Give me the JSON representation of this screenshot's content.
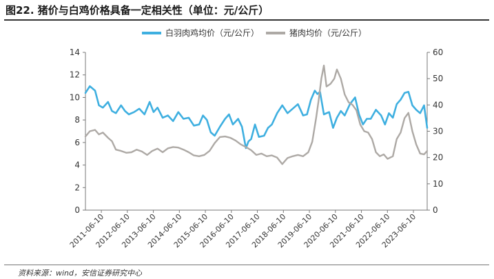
{
  "title": "图22. 猪价与白鸡价格具备一定相关性（单位：元/公斤）",
  "source": "资料来源：wind，安信证券研究中心",
  "chart_data": {
    "type": "line",
    "title": "图22. 猪价与白鸡价格具备一定相关性（单位：元/公斤）",
    "xlabel": "",
    "ylabel": "",
    "legend_position": "top",
    "grid": false,
    "x_tick_labels": [
      "2011-06-10",
      "2012-06-10",
      "2013-06-10",
      "2014-06-10",
      "2015-06-10",
      "2016-06-10",
      "2017-06-10",
      "2018-06-10",
      "2019-06-10",
      "2020-06-10",
      "2021-06-10",
      "2022-06-10",
      "2023-06-10"
    ],
    "y_left": {
      "ticks": [
        0,
        2,
        4,
        6,
        8,
        10,
        12,
        14
      ],
      "range": [
        0,
        14
      ]
    },
    "y_right": {
      "ticks": [
        0,
        10,
        20,
        30,
        40,
        50,
        60
      ],
      "range": [
        0,
        60
      ]
    },
    "x_range": [
      2010.83,
      2023.97
    ],
    "series": [
      {
        "name": "白羽肉鸡均价（元/公斤）",
        "axis": "left",
        "color": "#3EAFE0",
        "x": [
          2010.83,
          2011.0,
          2011.2,
          2011.35,
          2011.5,
          2011.7,
          2011.85,
          2012.0,
          2012.2,
          2012.35,
          2012.5,
          2012.7,
          2012.9,
          2013.1,
          2013.3,
          2013.45,
          2013.6,
          2013.8,
          2014.0,
          2014.2,
          2014.4,
          2014.6,
          2014.8,
          2015.0,
          2015.2,
          2015.35,
          2015.5,
          2015.65,
          2015.8,
          2016.0,
          2016.2,
          2016.35,
          2016.5,
          2016.7,
          2016.85,
          2017.0,
          2017.1,
          2017.2,
          2017.35,
          2017.5,
          2017.7,
          2017.85,
          2018.0,
          2018.2,
          2018.4,
          2018.6,
          2018.8,
          2019.0,
          2019.2,
          2019.35,
          2019.5,
          2019.65,
          2019.75,
          2019.85,
          2020.0,
          2020.2,
          2020.35,
          2020.5,
          2020.65,
          2020.8,
          2021.0,
          2021.2,
          2021.35,
          2021.5,
          2021.65,
          2021.8,
          2022.0,
          2022.2,
          2022.35,
          2022.5,
          2022.65,
          2022.8,
          2022.95,
          2023.1,
          2023.25,
          2023.4,
          2023.55,
          2023.7,
          2023.85,
          2023.97
        ],
        "values": [
          10.4,
          11.0,
          10.6,
          9.3,
          9.1,
          9.6,
          8.8,
          8.6,
          9.3,
          8.8,
          8.5,
          8.7,
          9.0,
          8.5,
          9.6,
          8.7,
          9.1,
          8.2,
          8.4,
          7.9,
          8.7,
          8.1,
          8.2,
          7.5,
          7.6,
          8.4,
          8.0,
          6.9,
          6.6,
          7.4,
          8.1,
          8.5,
          7.6,
          8.1,
          7.4,
          5.5,
          6.1,
          6.3,
          7.6,
          6.5,
          6.6,
          7.3,
          7.6,
          8.6,
          9.3,
          8.6,
          9.0,
          9.4,
          8.4,
          8.5,
          9.8,
          10.6,
          10.3,
          10.5,
          8.5,
          8.7,
          7.3,
          8.2,
          8.8,
          8.4,
          9.4,
          10.0,
          8.5,
          7.6,
          8.1,
          8.1,
          8.9,
          8.4,
          7.6,
          8.6,
          8.2,
          9.4,
          9.8,
          10.4,
          10.5,
          9.3,
          8.9,
          8.6,
          9.3,
          7.3
        ]
      },
      {
        "name": "猪肉均价（元/公斤）",
        "axis": "right",
        "color": "#ADA9A5",
        "x": [
          2010.83,
          2011.0,
          2011.2,
          2011.35,
          2011.5,
          2011.7,
          2011.85,
          2012.0,
          2012.2,
          2012.4,
          2012.6,
          2012.8,
          2013.0,
          2013.2,
          2013.4,
          2013.6,
          2013.8,
          2014.0,
          2014.2,
          2014.4,
          2014.6,
          2014.8,
          2015.0,
          2015.2,
          2015.4,
          2015.6,
          2015.8,
          2016.0,
          2016.2,
          2016.4,
          2016.6,
          2016.8,
          2017.0,
          2017.2,
          2017.4,
          2017.6,
          2017.8,
          2018.0,
          2018.2,
          2018.4,
          2018.6,
          2018.8,
          2019.0,
          2019.2,
          2019.4,
          2019.55,
          2019.7,
          2019.8,
          2019.9,
          2020.0,
          2020.1,
          2020.25,
          2020.4,
          2020.5,
          2020.65,
          2020.8,
          2020.95,
          2021.1,
          2021.25,
          2021.4,
          2021.55,
          2021.7,
          2021.85,
          2022.0,
          2022.15,
          2022.3,
          2022.45,
          2022.55,
          2022.65,
          2022.8,
          2022.95,
          2023.1,
          2023.25,
          2023.4,
          2023.55,
          2023.7,
          2023.85,
          2023.97
        ],
        "values": [
          28.0,
          30.0,
          30.5,
          28.8,
          29.5,
          27.5,
          26.2,
          23.0,
          22.5,
          21.8,
          22.0,
          23.0,
          22.3,
          21.0,
          22.5,
          23.4,
          22.0,
          23.5,
          24.0,
          23.8,
          23.0,
          22.0,
          20.8,
          20.5,
          21.0,
          22.5,
          25.5,
          27.8,
          28.0,
          27.5,
          26.5,
          25.0,
          24.0,
          22.8,
          21.0,
          21.5,
          20.5,
          20.8,
          20.0,
          17.5,
          19.8,
          20.5,
          21.0,
          20.5,
          22.0,
          26.0,
          35.0,
          42.0,
          50.0,
          55.0,
          47.0,
          48.0,
          50.0,
          53.5,
          50.0,
          44.0,
          41.0,
          40.0,
          38.0,
          32.5,
          30.0,
          29.5,
          27.0,
          22.0,
          20.5,
          21.2,
          19.5,
          20.0,
          20.5,
          27.0,
          29.5,
          35.0,
          37.0,
          30.0,
          25.0,
          21.5,
          21.2,
          22.5
        ]
      }
    ]
  }
}
